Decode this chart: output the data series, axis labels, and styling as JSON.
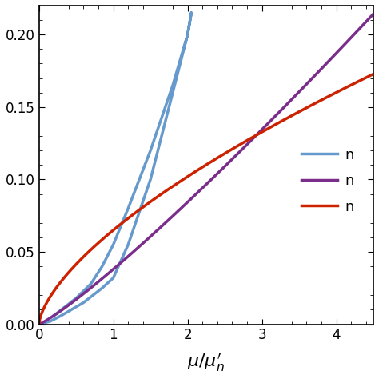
{
  "title": "",
  "xlabel": "$\\mu/\\mu^{\\prime}_n$",
  "ylabel": "",
  "xlim": [
    0,
    4.5
  ],
  "ylim": [
    0,
    0.22
  ],
  "yticks": [
    0.0,
    0.05,
    0.1,
    0.15,
    0.2
  ],
  "ytick_labels": [
    "0.00",
    "0.05",
    "0.10",
    "0.15",
    "0.20"
  ],
  "xticks": [
    0,
    1,
    2,
    3,
    4
  ],
  "colors": {
    "blue": "#6699CC",
    "purple": "#7B2D8B",
    "red": "#CC2200"
  },
  "linewidth": 2.5,
  "background_color": "#FFFFFF"
}
